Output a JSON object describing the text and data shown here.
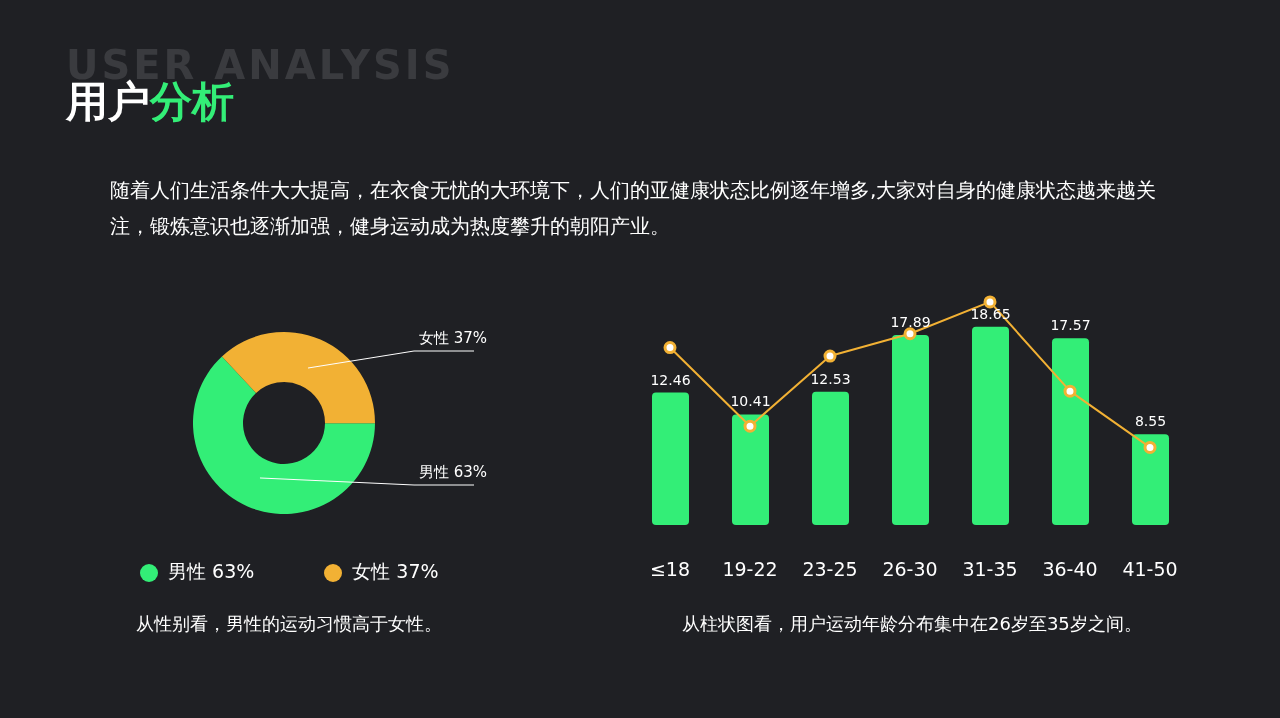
{
  "chart_data": [
    {
      "type": "other",
      "title": "用户分析",
      "subtitle": "随着人们生活条件大大提高，在衣食无忧的大环境下，人们的亚健康状态比例逐年增多,大家对自身的健康状态越来越关注，锻炼意识也逐渐加强，健身运动成为热度攀升的朝阳产业。",
      "annotations": [
        "USER ANALYSIS"
      ]
    },
    {
      "type": "donut",
      "categories": [
        "男性 63%",
        "女性 37%"
      ],
      "values": [
        63,
        37
      ],
      "colors": [
        "#33ee77",
        "#f2b134"
      ],
      "legend": "bottom",
      "annotations": [
        "从性别看，男性的运动习惯高于女性。"
      ]
    },
    {
      "type": "bar",
      "categories": [
        "≤18",
        "19-22",
        "23-25",
        "26-30",
        "31-35",
        "36-40",
        "41-50"
      ],
      "tick_labels": "x",
      "annotations": [
        "从柱状图看，用户运动年龄分布集中在26岁至35岁之间。"
      ],
      "series": [
        {
          "type": "bar",
          "color": "#33ee77",
          "values": [
            12.46,
            10.41,
            12.53,
            17.89,
            18.65,
            17.57,
            8.55
          ],
          "data_labels": true
        },
        {
          "type": "line",
          "color": "#f2b134",
          "marker": "circle",
          "values": [
            16.7,
            9.3,
            15.9,
            18.0,
            21.0,
            12.6,
            7.3
          ]
        }
      ]
    }
  ]
}
